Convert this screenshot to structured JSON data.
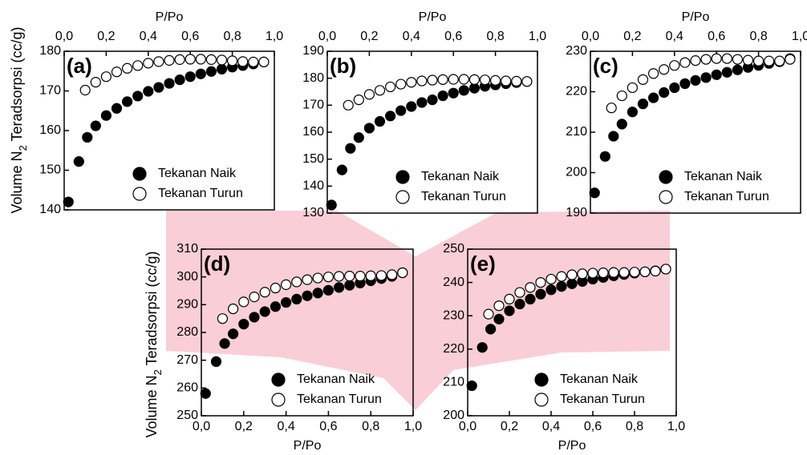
{
  "chart_data": [
    {
      "type": "scatter",
      "label": "(a)",
      "xlabel": "P/Po",
      "ylabel_parts": [
        "Volume N",
        "2",
        " Teradsorpsi (cc/g)"
      ],
      "xaxis_position": "top",
      "legend_position": "lower right",
      "xlim": [
        0,
        1
      ],
      "xticks": [
        {
          "value": 0,
          "label": "0,0"
        },
        {
          "value": 0.2,
          "label": "0,2"
        },
        {
          "value": 0.4,
          "label": "0,4"
        },
        {
          "value": 0.6,
          "label": "0,6"
        },
        {
          "value": 0.8,
          "label": "0,8"
        },
        {
          "value": 1,
          "label": "1,0"
        }
      ],
      "ylim": [
        140,
        180
      ],
      "yticks": [
        140,
        150,
        160,
        170,
        180
      ],
      "series": [
        {
          "name": "Tekanan Naik",
          "color": "#000000",
          "filled": true,
          "x": [
            0.02,
            0.07,
            0.11,
            0.15,
            0.2,
            0.25,
            0.3,
            0.35,
            0.4,
            0.45,
            0.5,
            0.55,
            0.6,
            0.65,
            0.7,
            0.75,
            0.8,
            0.85,
            0.9,
            0.95
          ],
          "values": [
            142,
            152.2,
            158.3,
            161.2,
            163.8,
            165.6,
            167.3,
            168.7,
            169.9,
            170.9,
            171.9,
            172.8,
            173.6,
            174.3,
            174.9,
            175.5,
            176,
            176.4,
            176.8,
            177.3
          ]
        },
        {
          "name": "Tekanan Turun",
          "color": "#000000",
          "filled": false,
          "x": [
            0.1,
            0.15,
            0.2,
            0.25,
            0.3,
            0.35,
            0.4,
            0.45,
            0.5,
            0.55,
            0.6,
            0.65,
            0.7,
            0.75,
            0.8,
            0.85,
            0.9,
            0.95
          ],
          "values": [
            170.2,
            172.2,
            173.6,
            174.8,
            175.7,
            176.4,
            177,
            177.4,
            177.7,
            177.9,
            178,
            178,
            177.9,
            177.8,
            177.6,
            177.4,
            177.3,
            177.3
          ]
        }
      ]
    },
    {
      "type": "scatter",
      "label": "(b)",
      "xlabel": "P/Po",
      "xaxis_position": "top",
      "legend_position": "lower right",
      "xlim": [
        0,
        1
      ],
      "xticks": [
        {
          "value": 0,
          "label": "0,0"
        },
        {
          "value": 0.2,
          "label": "0,2"
        },
        {
          "value": 0.4,
          "label": "0,4"
        },
        {
          "value": 0.6,
          "label": "0,6"
        },
        {
          "value": 0.8,
          "label": "0,8"
        },
        {
          "value": 1,
          "label": "1,0"
        }
      ],
      "ylim": [
        130,
        190
      ],
      "yticks": [
        130,
        140,
        150,
        160,
        170,
        180,
        190
      ],
      "series": [
        {
          "name": "Tekanan Naik",
          "color": "#000000",
          "filled": true,
          "x": [
            0.02,
            0.07,
            0.11,
            0.15,
            0.2,
            0.25,
            0.3,
            0.35,
            0.4,
            0.45,
            0.5,
            0.55,
            0.6,
            0.65,
            0.7,
            0.75,
            0.8,
            0.85,
            0.9,
            0.95
          ],
          "values": [
            133,
            146,
            154,
            158,
            161.5,
            164,
            166,
            168,
            169.5,
            171,
            172,
            173.5,
            174.5,
            175.5,
            176.3,
            177,
            177.5,
            178,
            178.4,
            178.8
          ]
        },
        {
          "name": "Tekanan Turun",
          "color": "#000000",
          "filled": false,
          "x": [
            0.1,
            0.15,
            0.2,
            0.25,
            0.3,
            0.35,
            0.4,
            0.45,
            0.5,
            0.55,
            0.6,
            0.65,
            0.7,
            0.75,
            0.8,
            0.85,
            0.9,
            0.95
          ],
          "values": [
            170,
            172,
            174,
            175.5,
            176.8,
            177.8,
            178.5,
            179,
            179.3,
            179.5,
            179.6,
            179.6,
            179.5,
            179.4,
            179.2,
            179,
            178.9,
            178.8
          ]
        }
      ]
    },
    {
      "type": "scatter",
      "label": "(c)",
      "xlabel": "P/Po",
      "xaxis_position": "top",
      "legend_position": "lower right",
      "xlim": [
        0,
        1
      ],
      "xticks": [
        {
          "value": 0,
          "label": "0,0"
        },
        {
          "value": 0.2,
          "label": "0,2"
        },
        {
          "value": 0.4,
          "label": "0,4"
        },
        {
          "value": 0.6,
          "label": "0,6"
        },
        {
          "value": 0.8,
          "label": "0,8"
        },
        {
          "value": 1,
          "label": "1,0"
        }
      ],
      "ylim": [
        190,
        230
      ],
      "yticks": [
        190,
        200,
        210,
        220,
        230
      ],
      "series": [
        {
          "name": "Tekanan Naik",
          "color": "#000000",
          "filled": true,
          "x": [
            0.02,
            0.07,
            0.11,
            0.15,
            0.2,
            0.25,
            0.3,
            0.35,
            0.4,
            0.45,
            0.5,
            0.55,
            0.6,
            0.65,
            0.7,
            0.75,
            0.8,
            0.85,
            0.9,
            0.95
          ],
          "values": [
            195,
            204,
            209,
            212,
            215,
            217,
            218.5,
            219.8,
            221,
            222,
            222.8,
            223.5,
            224.2,
            224.8,
            225.4,
            226,
            226.5,
            227,
            227.4,
            228.2
          ]
        },
        {
          "name": "Tekanan Turun",
          "color": "#000000",
          "filled": false,
          "x": [
            0.1,
            0.15,
            0.2,
            0.25,
            0.3,
            0.35,
            0.4,
            0.45,
            0.5,
            0.55,
            0.6,
            0.65,
            0.7,
            0.75,
            0.8,
            0.85,
            0.9,
            0.95
          ],
          "values": [
            216,
            219,
            221,
            223,
            224.5,
            225.5,
            226.5,
            227.2,
            227.7,
            228,
            228.2,
            228.2,
            228,
            227.8,
            227.6,
            227.6,
            227.6,
            228
          ]
        }
      ]
    },
    {
      "type": "scatter",
      "label": "(d)",
      "xlabel": "P/Po",
      "ylabel_parts": [
        "Volume N",
        "2",
        " Teradsorpsi (cc/g)"
      ],
      "xaxis_position": "bottom",
      "legend_position": "lower right",
      "xlim": [
        0,
        1
      ],
      "xticks": [
        {
          "value": 0,
          "label": "0,0"
        },
        {
          "value": 0.2,
          "label": "0,2"
        },
        {
          "value": 0.4,
          "label": "0,4"
        },
        {
          "value": 0.6,
          "label": "0,6"
        },
        {
          "value": 0.8,
          "label": "0,8"
        },
        {
          "value": 1,
          "label": "1,0"
        }
      ],
      "ylim": [
        250,
        310
      ],
      "yticks": [
        250,
        260,
        270,
        280,
        290,
        300,
        310
      ],
      "series": [
        {
          "name": "Tekanan Naik",
          "color": "#000000",
          "filled": true,
          "x": [
            0.02,
            0.07,
            0.11,
            0.15,
            0.2,
            0.25,
            0.3,
            0.35,
            0.4,
            0.45,
            0.5,
            0.55,
            0.6,
            0.65,
            0.7,
            0.75,
            0.8,
            0.85,
            0.9,
            0.95
          ],
          "values": [
            258,
            269.5,
            276,
            279.5,
            283,
            285.5,
            287.5,
            289.3,
            290.8,
            292,
            293.2,
            294.2,
            295.2,
            296.2,
            297,
            297.8,
            298.6,
            299.4,
            300.2,
            301.5
          ]
        },
        {
          "name": "Tekanan Turun",
          "color": "#000000",
          "filled": false,
          "x": [
            0.1,
            0.15,
            0.2,
            0.25,
            0.3,
            0.35,
            0.4,
            0.45,
            0.5,
            0.55,
            0.6,
            0.65,
            0.7,
            0.75,
            0.8,
            0.85,
            0.9,
            0.95
          ],
          "values": [
            285,
            288.5,
            291,
            292.8,
            294.5,
            296,
            297.2,
            298.2,
            299,
            299.6,
            300,
            300.2,
            300.3,
            300.3,
            300.4,
            300.5,
            300.8,
            301.5
          ]
        }
      ]
    },
    {
      "type": "scatter",
      "label": "(e)",
      "xlabel": "P/Po",
      "xaxis_position": "bottom",
      "legend_position": "lower right",
      "xlim": [
        0,
        1
      ],
      "xticks": [
        {
          "value": 0,
          "label": "0,0"
        },
        {
          "value": 0.2,
          "label": "0,2"
        },
        {
          "value": 0.4,
          "label": "0,4"
        },
        {
          "value": 0.6,
          "label": "0,6"
        },
        {
          "value": 0.8,
          "label": "0,8"
        },
        {
          "value": 1,
          "label": "1,0"
        }
      ],
      "ylim": [
        200,
        250
      ],
      "yticks": [
        200,
        210,
        220,
        230,
        240,
        250
      ],
      "series": [
        {
          "name": "Tekanan Naik",
          "color": "#000000",
          "filled": true,
          "x": [
            0.02,
            0.07,
            0.11,
            0.15,
            0.2,
            0.25,
            0.3,
            0.35,
            0.4,
            0.45,
            0.5,
            0.55,
            0.6,
            0.65,
            0.7,
            0.75,
            0.8,
            0.85,
            0.9,
            0.95
          ],
          "values": [
            209,
            220.5,
            226,
            229,
            231.5,
            233.5,
            235,
            236.5,
            237.8,
            238.8,
            239.6,
            240.3,
            241,
            241.5,
            242,
            242.4,
            242.8,
            243.2,
            243.5,
            244
          ]
        },
        {
          "name": "Tekanan Turun",
          "color": "#000000",
          "filled": false,
          "x": [
            0.1,
            0.15,
            0.2,
            0.25,
            0.3,
            0.35,
            0.4,
            0.45,
            0.5,
            0.55,
            0.6,
            0.65,
            0.7,
            0.75,
            0.8,
            0.85,
            0.9,
            0.95
          ],
          "values": [
            230.5,
            233,
            235,
            237,
            238.5,
            240,
            241,
            241.8,
            242.3,
            242.6,
            242.8,
            242.9,
            243,
            243,
            243.1,
            243.2,
            243.4,
            244
          ]
        }
      ]
    }
  ]
}
